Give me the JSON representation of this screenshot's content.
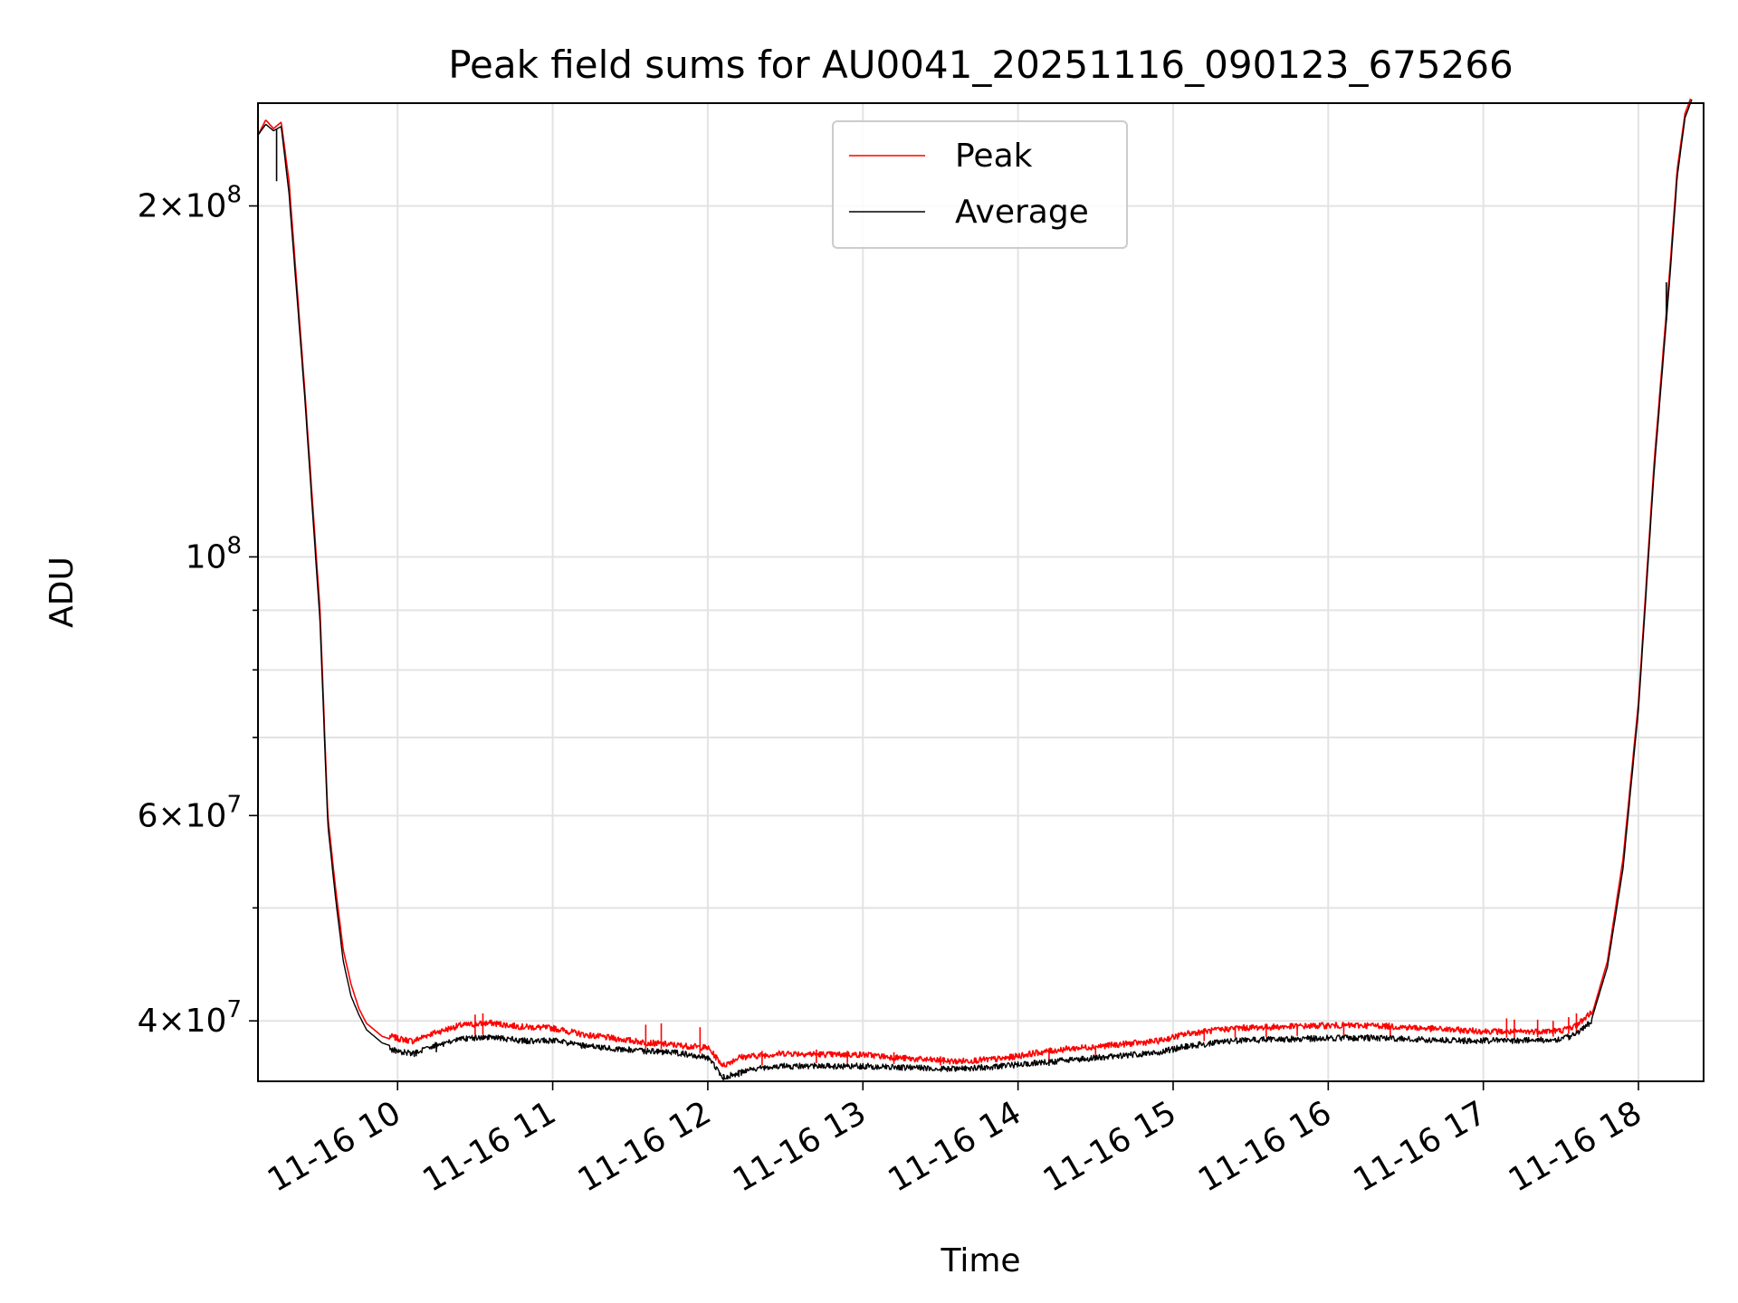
{
  "chart_data": {
    "type": "line",
    "title": "Peak field sums for AU0041_20251116_090123_675266",
    "xlabel": "Time",
    "ylabel": "ADU",
    "yscale": "log",
    "ylim": [
      35500000,
      245000000
    ],
    "xlim_hours": [
      9.1,
      18.42
    ],
    "grid": true,
    "legend_location": "upper center",
    "x_ticks": [
      {
        "hour": 10,
        "label": "11-16 10"
      },
      {
        "hour": 11,
        "label": "11-16 11"
      },
      {
        "hour": 12,
        "label": "11-16 12"
      },
      {
        "hour": 13,
        "label": "11-16 13"
      },
      {
        "hour": 14,
        "label": "11-16 14"
      },
      {
        "hour": 15,
        "label": "11-16 15"
      },
      {
        "hour": 16,
        "label": "11-16 16"
      },
      {
        "hour": 17,
        "label": "11-16 17"
      },
      {
        "hour": 18,
        "label": "11-16 18"
      }
    ],
    "y_ticks": [
      {
        "value": 40000000,
        "mant": "4",
        "exp": "7"
      },
      {
        "value": 60000000,
        "mant": "6",
        "exp": "7"
      },
      {
        "value": 100000000,
        "mant": "",
        "exp": "8"
      },
      {
        "value": 200000000,
        "mant": "2",
        "exp": "8"
      }
    ],
    "y_minor_ticks": [
      50000000,
      70000000,
      80000000,
      90000000
    ],
    "series": [
      {
        "name": "Peak",
        "color": "#ff0000",
        "x_hours": [
          9.1,
          9.15,
          9.2,
          9.25,
          9.3,
          9.4,
          9.5,
          9.55,
          9.6,
          9.65,
          9.7,
          9.75,
          9.8,
          9.85,
          9.9,
          10.0,
          10.1,
          10.2,
          10.4,
          10.6,
          10.8,
          11.0,
          11.2,
          11.4,
          11.6,
          11.8,
          12.0,
          12.1,
          12.2,
          12.3,
          12.5,
          12.8,
          13.0,
          13.3,
          13.6,
          13.9,
          14.1,
          14.3,
          14.6,
          14.9,
          15.1,
          15.4,
          15.7,
          16.0,
          16.3,
          16.6,
          16.9,
          17.2,
          17.5,
          17.6,
          17.7,
          17.8,
          17.9,
          18.0,
          18.1,
          18.2,
          18.25,
          18.3,
          18.35
        ],
        "values": [
          230000000,
          237000000,
          233000000,
          236000000,
          210000000,
          140000000,
          90000000,
          60000000,
          52000000,
          46000000,
          43000000,
          41000000,
          39800000,
          39300000,
          38800000,
          38400000,
          38200000,
          38700000,
          39400000,
          39600000,
          39300000,
          39200000,
          38700000,
          38400000,
          38100000,
          37900000,
          37700000,
          36400000,
          37000000,
          37100000,
          37300000,
          37200000,
          37200000,
          36900000,
          36700000,
          36900000,
          37300000,
          37600000,
          37900000,
          38200000,
          38800000,
          39200000,
          39300000,
          39400000,
          39400000,
          39200000,
          39000000,
          38900000,
          39000000,
          39400000,
          40500000,
          45000000,
          55000000,
          75000000,
          120000000,
          175000000,
          215000000,
          240000000,
          250000000
        ],
        "spikes": [
          {
            "hour": 10.5,
            "value": 40500000
          },
          {
            "hour": 10.55,
            "value": 40600000
          },
          {
            "hour": 11.6,
            "value": 39700000
          },
          {
            "hour": 11.7,
            "value": 39800000
          },
          {
            "hour": 11.95,
            "value": 39500000
          },
          {
            "hour": 12.35,
            "value": 37700000
          },
          {
            "hour": 12.7,
            "value": 37800000
          },
          {
            "hour": 12.9,
            "value": 37700000
          },
          {
            "hour": 13.2,
            "value": 37600000
          },
          {
            "hour": 13.5,
            "value": 37300000
          },
          {
            "hour": 14.2,
            "value": 37900000
          },
          {
            "hour": 14.5,
            "value": 38100000
          },
          {
            "hour": 15.2,
            "value": 39400000
          },
          {
            "hour": 15.4,
            "value": 39600000
          },
          {
            "hour": 15.6,
            "value": 39600000
          },
          {
            "hour": 15.8,
            "value": 39700000
          },
          {
            "hour": 16.1,
            "value": 39700000
          },
          {
            "hour": 16.4,
            "value": 39600000
          },
          {
            "hour": 17.15,
            "value": 40200000
          },
          {
            "hour": 17.2,
            "value": 40100000
          },
          {
            "hour": 17.35,
            "value": 40100000
          },
          {
            "hour": 17.45,
            "value": 40000000
          },
          {
            "hour": 17.55,
            "value": 40300000
          },
          {
            "hour": 17.6,
            "value": 40600000
          }
        ]
      },
      {
        "name": "Average",
        "color": "#000000",
        "x_hours": [
          9.1,
          9.15,
          9.2,
          9.25,
          9.3,
          9.4,
          9.5,
          9.55,
          9.6,
          9.65,
          9.7,
          9.75,
          9.8,
          9.85,
          9.9,
          10.0,
          10.1,
          10.2,
          10.4,
          10.6,
          10.8,
          11.0,
          11.2,
          11.4,
          11.6,
          11.8,
          12.0,
          12.1,
          12.2,
          12.3,
          12.5,
          12.8,
          13.0,
          13.3,
          13.6,
          13.9,
          14.1,
          14.3,
          14.6,
          14.9,
          15.1,
          15.4,
          15.7,
          16.0,
          16.3,
          16.6,
          16.9,
          17.2,
          17.5,
          17.6,
          17.7,
          17.8,
          17.9,
          18.0,
          18.1,
          18.2,
          18.25,
          18.3,
          18.35
        ],
        "values": [
          230000000,
          235000000,
          232000000,
          234000000,
          205000000,
          138000000,
          88000000,
          59000000,
          51000000,
          45000000,
          42000000,
          40500000,
          39300000,
          38800000,
          38300000,
          37900000,
          37700000,
          38200000,
          38800000,
          39000000,
          38700000,
          38700000,
          38300000,
          38100000,
          37900000,
          37800000,
          37400000,
          36000000,
          36300000,
          36600000,
          36800000,
          36800000,
          36800000,
          36700000,
          36600000,
          36800000,
          37000000,
          37200000,
          37500000,
          37800000,
          38300000,
          38700000,
          38800000,
          38900000,
          38900000,
          38800000,
          38700000,
          38700000,
          38800000,
          39200000,
          40200000,
          44500000,
          54000000,
          74000000,
          118000000,
          172000000,
          212000000,
          238000000,
          248000000
        ],
        "dips": [
          {
            "hour": 9.22,
            "value": 210000000
          },
          {
            "hour": 10.12,
            "value": 37300000
          },
          {
            "hour": 10.25,
            "value": 37600000
          },
          {
            "hour": 12.1,
            "value": 35900000
          },
          {
            "hour": 12.2,
            "value": 35800000
          },
          {
            "hour": 14.2,
            "value": 36600000
          },
          {
            "hour": 18.18,
            "value": 172000000
          }
        ]
      }
    ]
  }
}
